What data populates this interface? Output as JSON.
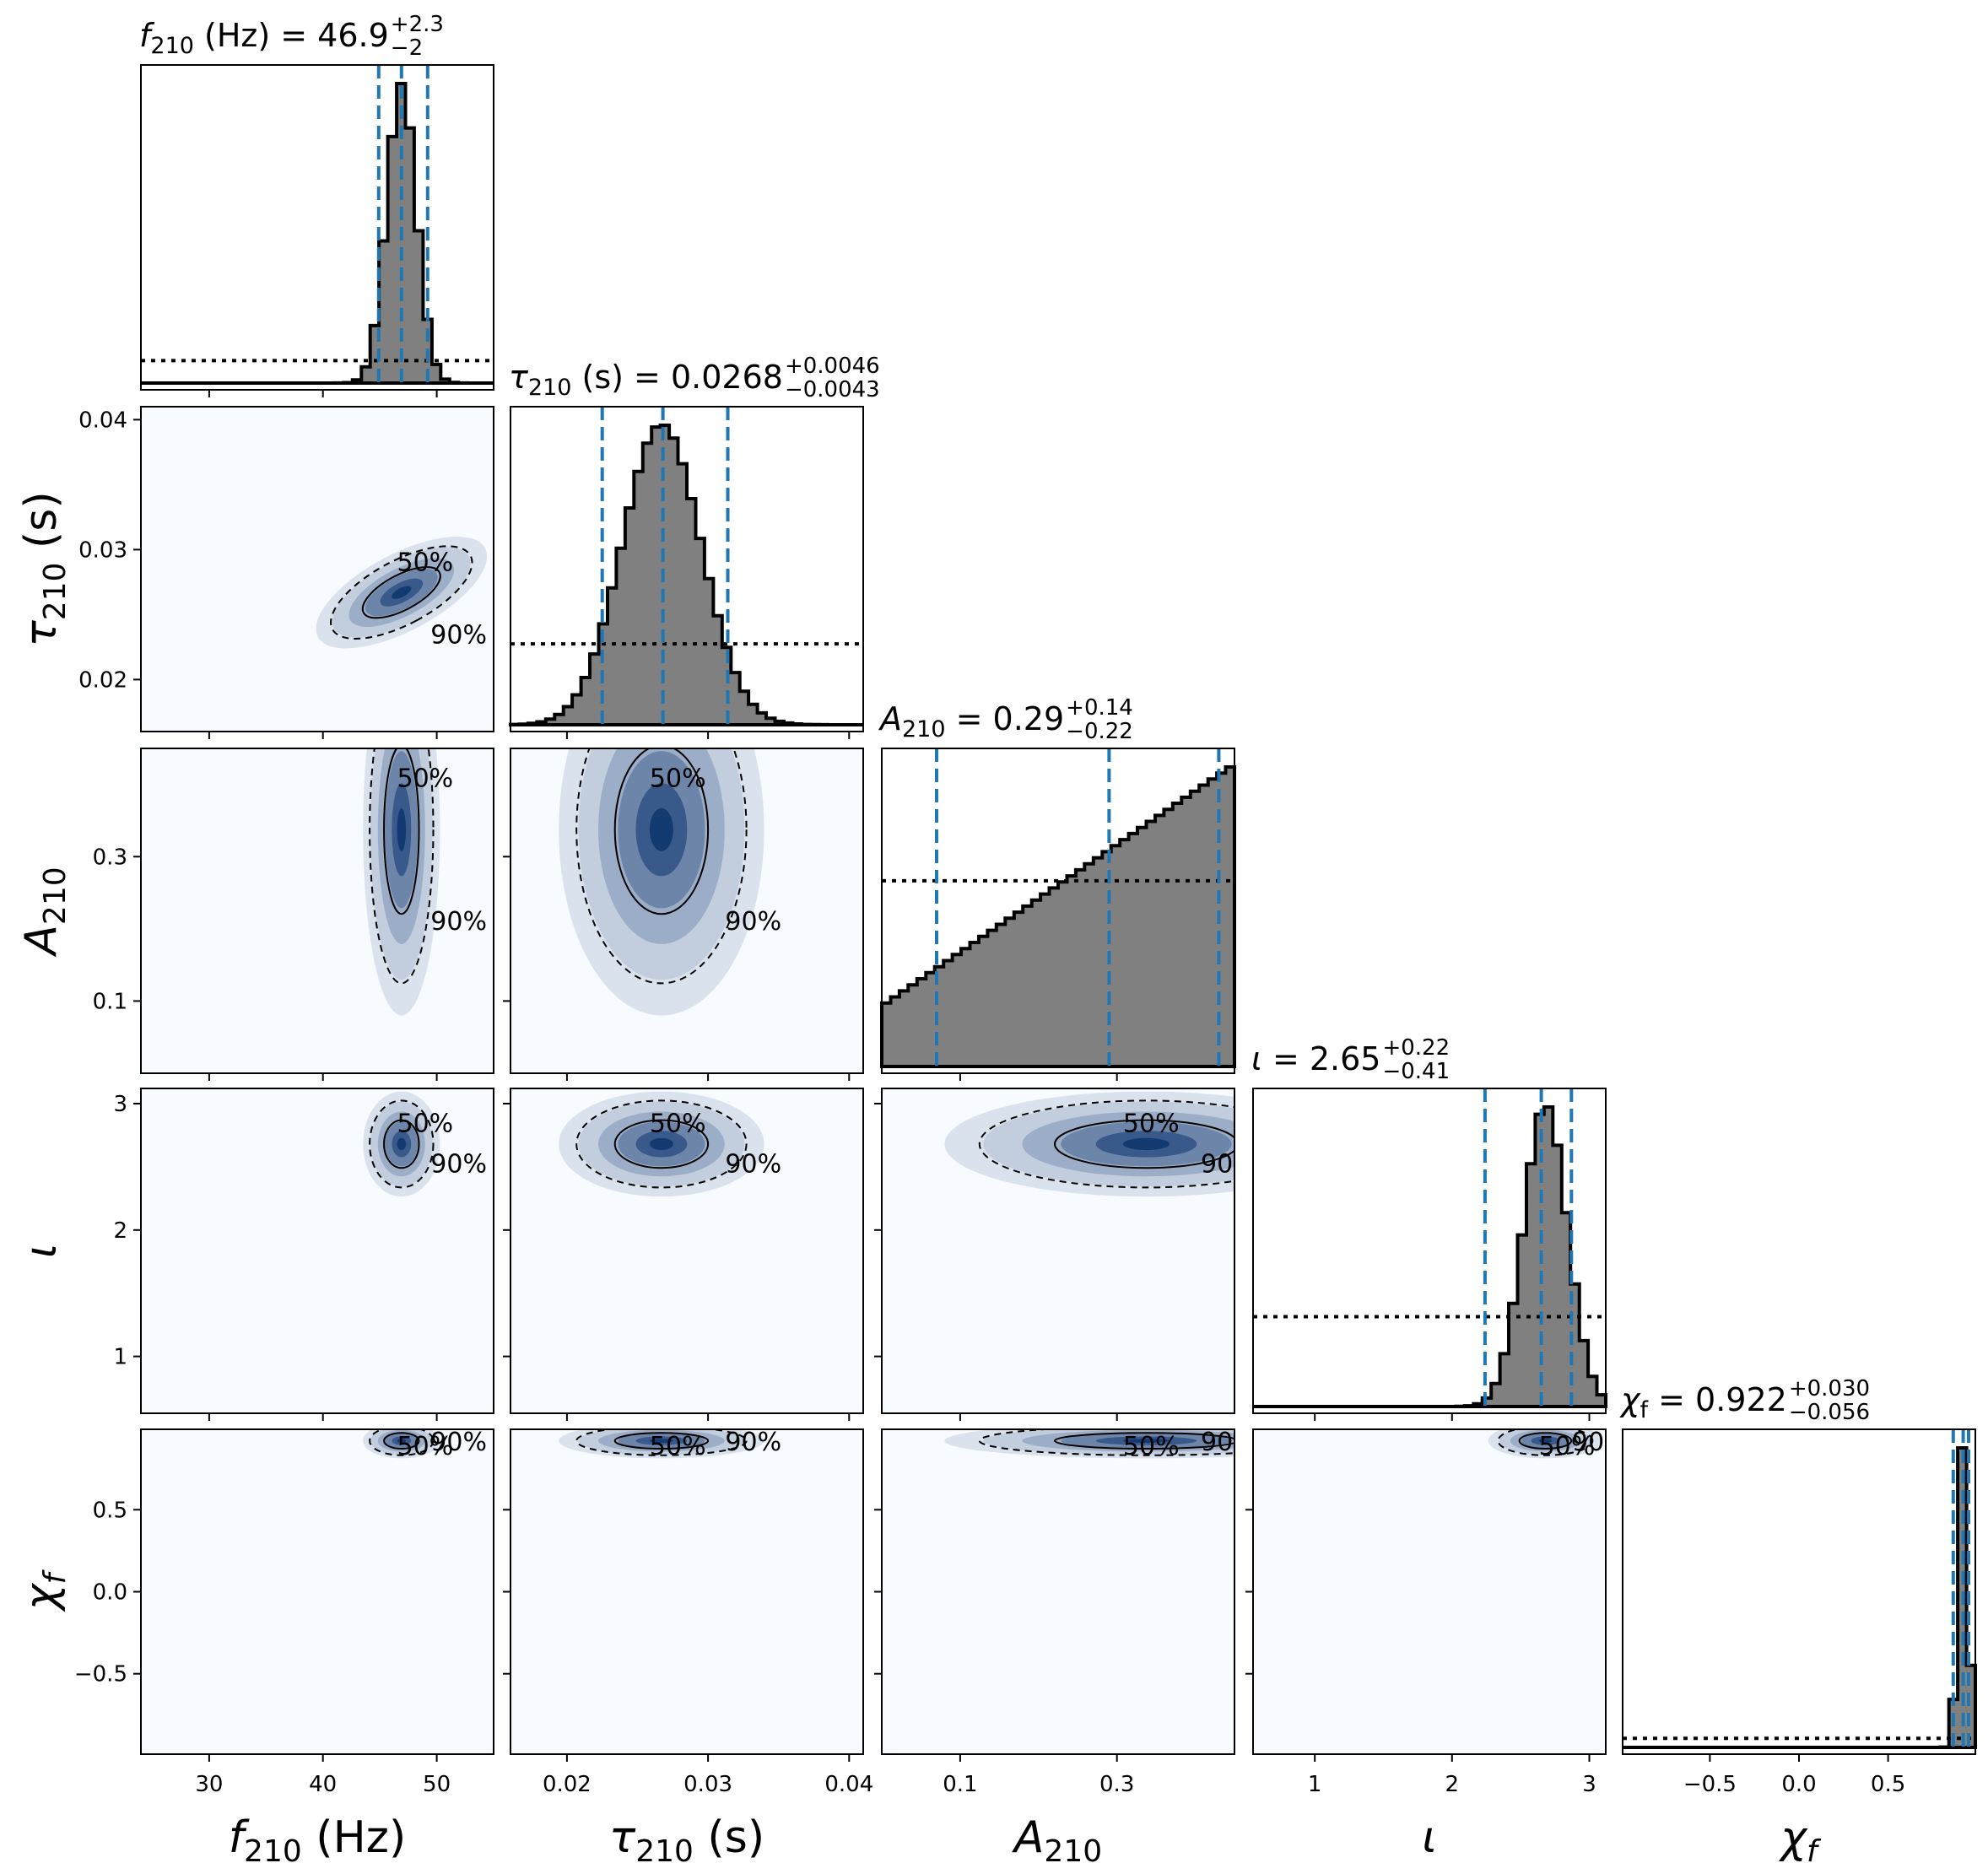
{
  "chart_data": {
    "type": "corner",
    "parameters": [
      {
        "key": "f210",
        "axis_label": {
          "sym": "f",
          "sub": "210",
          "unit": " (Hz)"
        },
        "title": {
          "sym": "f",
          "sub": "210",
          "unit": " (Hz)",
          "eq": " = 46.9",
          "sup": "+2.3",
          "low": "−2"
        },
        "range": [
          24,
          55
        ],
        "ticks": [
          30,
          40,
          50
        ],
        "tick_labels": [
          "30",
          "40",
          "50"
        ],
        "median": 46.9,
        "plus": 2.3,
        "minus": 2.0,
        "posterior": {
          "mu": 46.9,
          "sigma": 1.3
        },
        "prior_level": 0.075
      },
      {
        "key": "tau210",
        "axis_label": {
          "sym": "τ",
          "sub": "210",
          "unit": " (s)"
        },
        "title": {
          "sym": "τ",
          "sub": "210",
          "unit": " (s)",
          "eq": " = 0.0268",
          "sup": "+0.0046",
          "low": "−0.0043"
        },
        "range": [
          0.016,
          0.041
        ],
        "ticks": [
          0.02,
          0.03,
          0.04
        ],
        "tick_labels": [
          "0.02",
          "0.03",
          "0.04"
        ],
        "median": 0.0268,
        "plus": 0.0046,
        "minus": 0.0043,
        "posterior": {
          "mu": 0.0267,
          "sigma": 0.0028
        },
        "prior_level": 0.27
      },
      {
        "key": "A210",
        "axis_label": {
          "sym": "A",
          "sub": "210",
          "unit": ""
        },
        "title": {
          "sym": "A",
          "sub": "210",
          "unit": "",
          "eq": " = 0.29",
          "sup": "+0.14",
          "low": "−0.22"
        },
        "range": [
          0.0,
          0.45
        ],
        "ticks": [
          0.1,
          0.3
        ],
        "tick_labels": [
          "0.1",
          "0.3"
        ],
        "median": 0.29,
        "plus": 0.14,
        "minus": 0.22,
        "posterior": {
          "kind": "ramp",
          "min": 0.0,
          "max": 0.45
        },
        "prior_level": 0.62
      },
      {
        "key": "iota",
        "axis_label": {
          "sym": "ι",
          "sub": "",
          "unit": ""
        },
        "title": {
          "sym": "ι",
          "sub": "",
          "unit": "",
          "eq": " = 2.65",
          "sup": "+0.22",
          "low": "−0.41"
        },
        "range": [
          0.55,
          3.12
        ],
        "ticks": [
          1,
          2,
          3
        ],
        "tick_labels": [
          "1",
          "2",
          "3"
        ],
        "median": 2.65,
        "plus": 0.22,
        "minus": 0.41,
        "posterior": {
          "mu": 2.68,
          "sigma": 0.16
        },
        "prior_level": 0.3
      },
      {
        "key": "chif",
        "axis_label": {
          "sym": "χ",
          "sub": "f",
          "unit": ""
        },
        "title": {
          "sym": "χ",
          "sub": "f",
          "unit": "",
          "eq": " = 0.922",
          "sup": "+0.030",
          "low": "−0.056"
        },
        "range": [
          -0.99,
          0.99
        ],
        "ticks": [
          -0.5,
          0.0,
          0.5
        ],
        "tick_labels": [
          "−0.5",
          "0.0",
          "0.5"
        ],
        "median": 0.922,
        "plus": 0.03,
        "minus": 0.056,
        "posterior": {
          "mu": 0.92,
          "sigma": 0.028
        },
        "prior_level": 0.03
      }
    ],
    "y_ticks": {
      "tau210": {
        "values": [
          0.02,
          0.03,
          0.04
        ],
        "labels": [
          "0.02",
          "0.03",
          "0.04"
        ]
      },
      "A210": {
        "values": [
          0.1,
          0.3
        ],
        "labels": [
          "0.1",
          "0.3"
        ]
      },
      "iota": {
        "values": [
          1,
          2,
          3
        ],
        "labels": [
          "1",
          "2",
          "3"
        ]
      },
      "chif": {
        "values": [
          -0.5,
          0.0,
          0.5
        ],
        "labels": [
          "−0.5",
          "0.0",
          "0.5"
        ]
      }
    },
    "contour_levels": [
      "50%",
      "90%"
    ],
    "colors": {
      "histogram_fill": "#808080",
      "quantile_lines": "#1f77b4",
      "density_light": "#f7fbff",
      "density_dark": "#08306b",
      "contour": "#000000"
    }
  }
}
